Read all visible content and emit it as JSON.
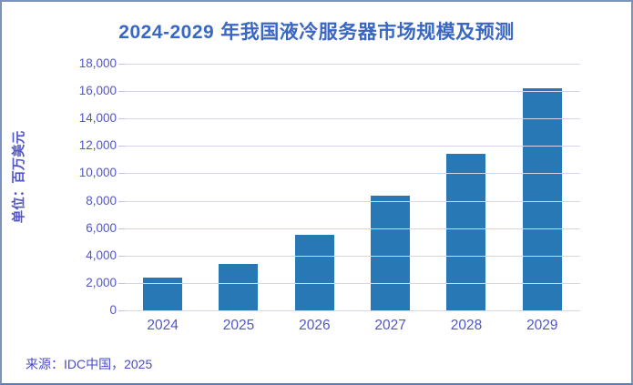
{
  "title": {
    "range": "2024-2029",
    "text": "年我国液冷服务器市场规模及预测"
  },
  "source": "来源：IDC中国，2025",
  "chart_data": {
    "type": "bar",
    "title": "2024-2029 年我国液冷服务器市场规模及预测",
    "categories": [
      "2024",
      "2025",
      "2026",
      "2027",
      "2028",
      "2029"
    ],
    "values": [
      2370,
      3400,
      5500,
      8400,
      11400,
      16200
    ],
    "xlabel": "",
    "ylabel": "单位：百万美元",
    "ylim": [
      0,
      18000
    ],
    "ytick_step": 2000,
    "ytick_labels": [
      "0",
      "2,000",
      "4,000",
      "6,000",
      "8,000",
      "10,000",
      "12,000",
      "14,000",
      "16,000",
      "18,000"
    ],
    "grid": true,
    "legend": false,
    "legend_position": "none",
    "bar_color": "#2878B5"
  },
  "colors": {
    "bar": "#2878B5",
    "title_text": "#3A67C2",
    "axis_text": "#5156C8",
    "gridline": "#D5D5F2",
    "frame_border": "#7B92BD",
    "background": "#FFFFFF"
  }
}
